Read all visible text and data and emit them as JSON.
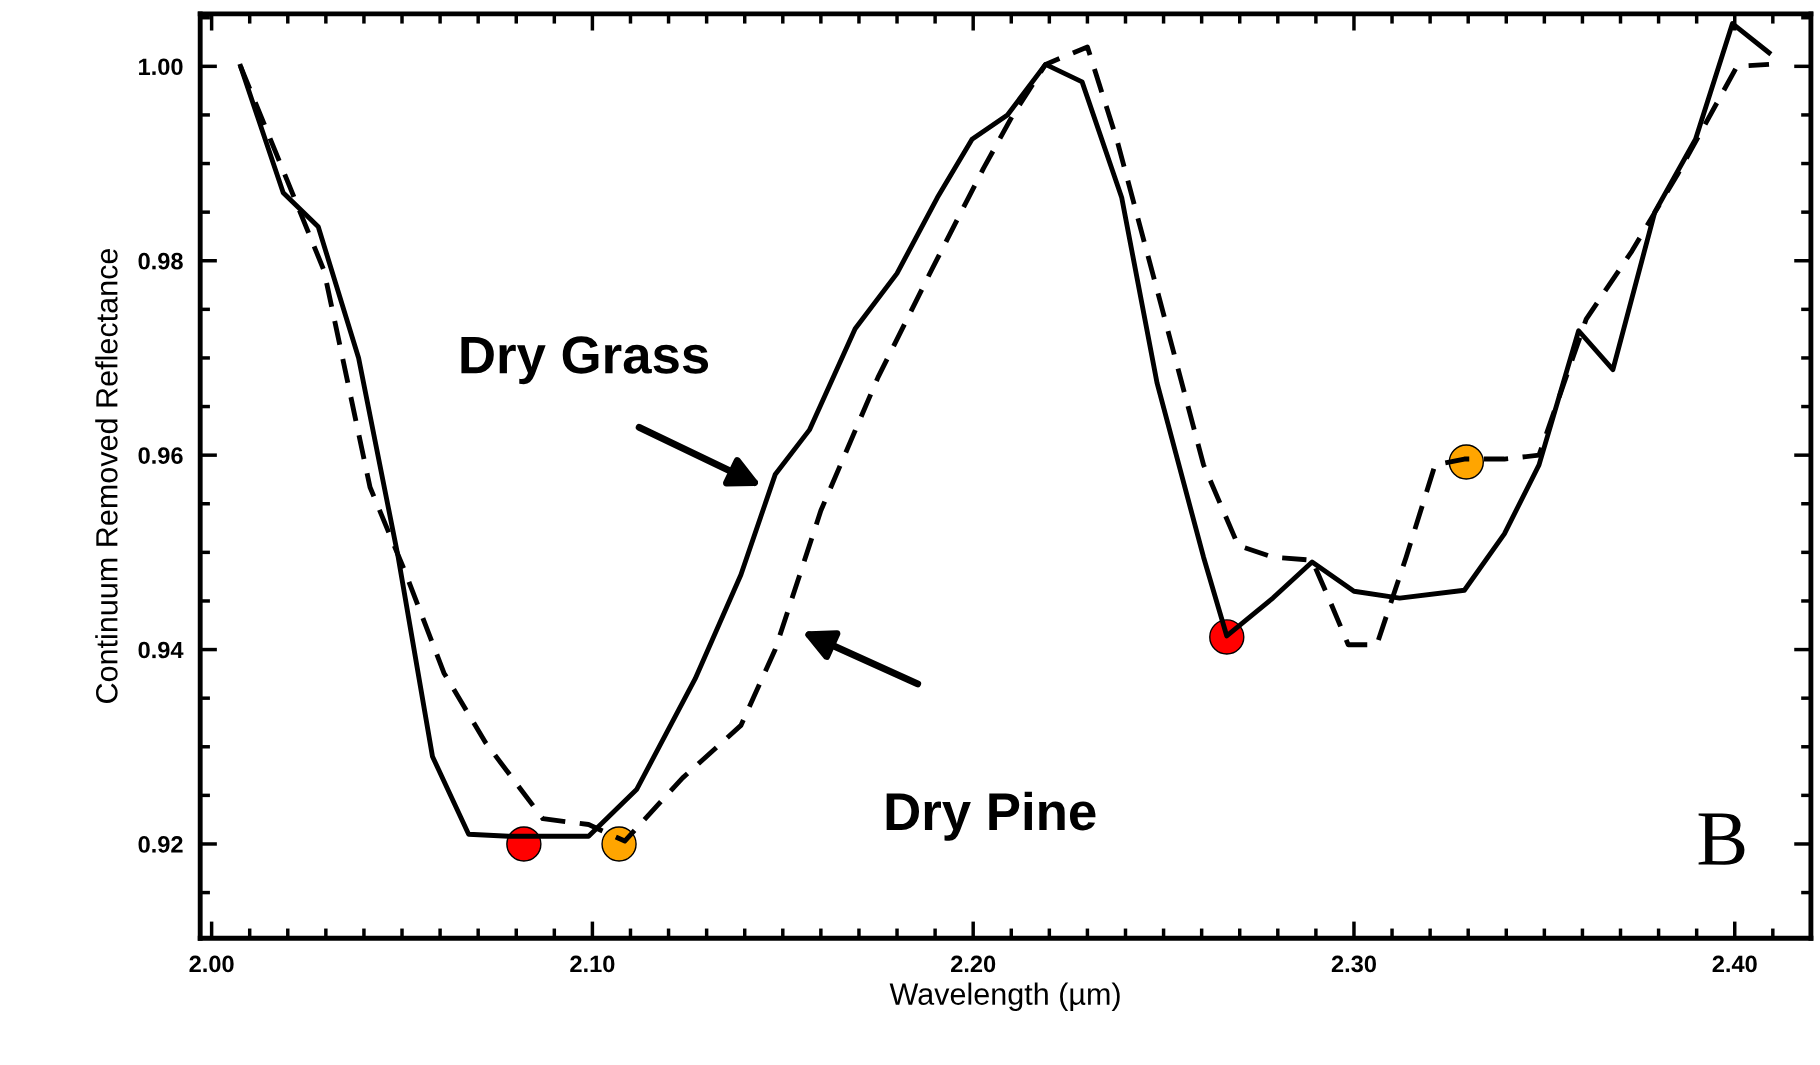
{
  "chart_data": {
    "type": "line",
    "xlabel": "Wavelength (µm)",
    "ylabel": "Continuum Removed Reflectance",
    "xlim": [
      1.997,
      2.42
    ],
    "ylim": [
      0.9103,
      1.0054
    ],
    "xticks": [
      {
        "value": 2.0,
        "label": "2.00"
      },
      {
        "value": 2.1,
        "label": "2.10"
      },
      {
        "value": 2.2,
        "label": "2.20"
      },
      {
        "value": 2.3,
        "label": "2.30"
      },
      {
        "value": 2.4,
        "label": "2.40"
      }
    ],
    "yticks": [
      {
        "value": 0.92,
        "label": "0.92"
      },
      {
        "value": 0.94,
        "label": "0.94"
      },
      {
        "value": 0.96,
        "label": "0.96"
      },
      {
        "value": 0.98,
        "label": "0.98"
      },
      {
        "value": 1.0,
        "label": "1.00"
      }
    ],
    "grid": false,
    "legend": false,
    "marker": "none",
    "series": [
      {
        "color": "#000000",
        "line_style": "solid",
        "x": [
          2.0076,
          2.0188,
          2.028,
          2.0386,
          2.049,
          2.058,
          2.0675,
          2.078,
          2.099,
          2.1116,
          2.127,
          2.139,
          2.148,
          2.157,
          2.169,
          2.18,
          2.1906,
          2.1997,
          2.209,
          2.219,
          2.2286,
          2.239,
          2.2483,
          2.2605,
          2.2666,
          2.2787,
          2.289,
          2.3,
          2.312,
          2.329,
          2.3395,
          2.3486,
          2.359,
          2.368,
          2.379,
          2.3897,
          2.3994,
          2.409
        ],
        "values": [
          1.0,
          0.987,
          0.9835,
          0.97,
          0.9495,
          0.929,
          0.921,
          0.9208,
          0.9208,
          0.9256,
          0.937,
          0.9477,
          0.958,
          0.9626,
          0.973,
          0.9787,
          0.9865,
          0.9925,
          0.995,
          1.0002,
          0.9984,
          0.9865,
          0.9674,
          0.9495,
          0.9414,
          0.9453,
          0.949,
          0.946,
          0.9453,
          0.9461,
          0.9519,
          0.959,
          0.9728,
          0.9688,
          0.985,
          0.9925,
          1.0044,
          1.0014
        ]
      },
      {
        "color": "#000000",
        "line_style": "dashed",
        "x": [
          2.0076,
          2.017,
          2.0295,
          2.0416,
          2.0508,
          2.061,
          2.072,
          2.087,
          2.099,
          2.1085,
          2.1237,
          2.139,
          2.148,
          2.16,
          2.175,
          2.189,
          2.2027,
          2.2103,
          2.219,
          2.23,
          2.2377,
          2.2483,
          2.2605,
          2.2696,
          2.2787,
          2.289,
          2.294,
          2.2985,
          2.306,
          2.3137,
          2.3213,
          2.329,
          2.3395,
          2.3486,
          2.361,
          2.373,
          2.385,
          2.4006,
          2.409
        ],
        "values": [
          1.0,
          0.991,
          0.979,
          0.9567,
          0.948,
          0.9376,
          0.9304,
          0.9226,
          0.922,
          0.9203,
          0.9268,
          0.9322,
          0.94,
          0.9543,
          0.968,
          0.979,
          0.9895,
          0.9949,
          1.0002,
          1.002,
          0.9925,
          0.977,
          0.959,
          0.9507,
          0.9495,
          0.9492,
          0.9447,
          0.9405,
          0.9405,
          0.9495,
          0.959,
          0.9596,
          0.9596,
          0.96,
          0.974,
          0.981,
          0.9889,
          1.0,
          1.0002
        ]
      },
      {
        "type": "scatter",
        "color": "#ff0000",
        "marker": "circle",
        "x": [
          2.082,
          2.2666
        ],
        "values": [
          0.92,
          0.9413
        ]
      },
      {
        "type": "scatter",
        "color": "#ffa500",
        "marker": "circle",
        "x": [
          2.107,
          2.3295
        ],
        "values": [
          0.92,
          0.9593
        ]
      }
    ],
    "annotations": [
      "Dry Grass",
      "Dry Pine",
      "B"
    ]
  }
}
